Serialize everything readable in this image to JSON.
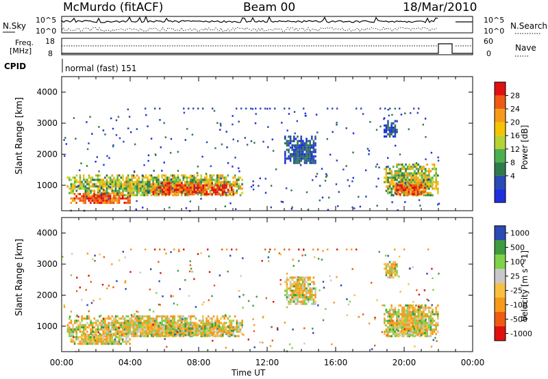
{
  "header": {
    "station": "McMurdo (fitACF)",
    "beam": "Beam 00",
    "date": "18/Mar/2010"
  },
  "top_panels": {
    "nsky_label": "N.Sky",
    "nsky_ticks": [
      "10^5",
      "10^0"
    ],
    "nsearch_label": "N.Search",
    "freq_label_1": "Freq.",
    "freq_label_2": "[MHz]",
    "freq_ticks": [
      "18",
      "8"
    ],
    "nave_label": "Nave",
    "nave_ticks": [
      "60",
      "0"
    ],
    "cpid_label": "CPID",
    "cpid_value": "normal (fast) 151"
  },
  "colors": {
    "power_scale": [
      "#1f2fe0",
      "#2a4ab4",
      "#2f7a4a",
      "#4caf50",
      "#b5d334",
      "#f5c400",
      "#f59a1a",
      "#ef5a12",
      "#e01010"
    ],
    "velocity_scale": [
      "#e01010",
      "#ef5a12",
      "#f59a1a",
      "#f7c040",
      "#c8c8c8",
      "#7fd14a",
      "#3e9b3e",
      "#2a4ab4"
    ]
  },
  "chart_data": [
    {
      "type": "heatmap",
      "name": "Power",
      "ylabel": "Slant Range [km]",
      "xlabel": "Time UT",
      "x_ticks": [
        "00:00",
        "04:00",
        "08:00",
        "12:00",
        "16:00",
        "20:00",
        "00:00"
      ],
      "y_ticks": [
        "1000",
        "2000",
        "3000",
        "4000"
      ],
      "colorbar_label": "Power [dB]",
      "colorbar_ticks": [
        "4",
        "8",
        "12",
        "16",
        "20",
        "24",
        "28"
      ],
      "xlim_hours": [
        0,
        24
      ],
      "ylim_km": [
        180,
        4500
      ],
      "blobs": [
        {
          "t0": 0.3,
          "t1": 10.5,
          "r0": 650,
          "r1": 1350,
          "val": "mid"
        },
        {
          "t0": 0.5,
          "t1": 4.0,
          "r0": 400,
          "r1": 750,
          "val": "high"
        },
        {
          "t0": 5.2,
          "t1": 10.0,
          "r0": 700,
          "r1": 1100,
          "val": "high"
        },
        {
          "t0": 13.0,
          "t1": 14.8,
          "r0": 1700,
          "r1": 2600,
          "val": "low"
        },
        {
          "t0": 18.8,
          "t1": 22.0,
          "r0": 700,
          "r1": 1700,
          "val": "mid"
        },
        {
          "t0": 19.5,
          "t1": 21.2,
          "r0": 700,
          "r1": 1100,
          "val": "high"
        },
        {
          "t0": 18.8,
          "t1": 19.6,
          "r0": 2600,
          "r1": 3100,
          "val": "low"
        }
      ]
    },
    {
      "type": "heatmap",
      "name": "Velocity",
      "ylabel": "Slant Range [km]",
      "xlabel": "Time UT",
      "x_ticks": [
        "00:00",
        "04:00",
        "08:00",
        "12:00",
        "16:00",
        "20:00",
        "00:00"
      ],
      "y_ticks": [
        "1000",
        "2000",
        "3000",
        "4000"
      ],
      "colorbar_label": "Velocity [m s^-1]",
      "colorbar_ticks": [
        "1000",
        "500",
        "100",
        "25",
        "-25",
        "-100",
        "-500",
        "-1000"
      ],
      "xlim_hours": [
        0,
        24
      ],
      "ylim_km": [
        180,
        4500
      ]
    }
  ]
}
